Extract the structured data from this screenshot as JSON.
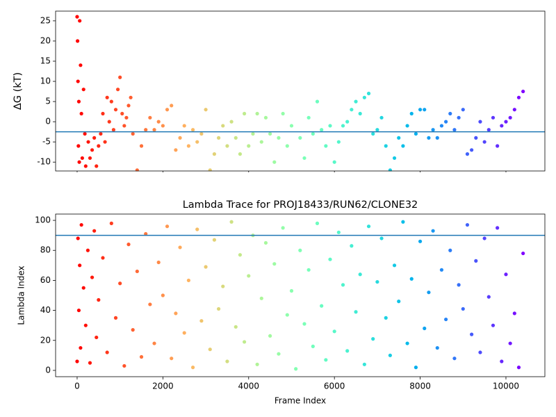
{
  "chart_data": [
    {
      "type": "scatter",
      "ylabel": "ΔG (kT)",
      "colormap": "rainbow_r",
      "hline": -2.5,
      "hline_color": "#1f77b4",
      "xlim": [
        -502,
        10908
      ],
      "ylim": [
        -12.2,
        27.4
      ],
      "xticks": [
        0,
        2000,
        4000,
        6000,
        8000,
        10000
      ],
      "yticks": [
        -10,
        -5,
        0,
        5,
        10,
        15,
        20,
        25
      ],
      "x": [
        0,
        10,
        20,
        30,
        40,
        50,
        60,
        80,
        100,
        120,
        150,
        180,
        200,
        260,
        300,
        350,
        400,
        450,
        500,
        550,
        600,
        650,
        700,
        750,
        800,
        850,
        900,
        950,
        1000,
        1050,
        1100,
        1150,
        1200,
        1250,
        1300,
        1400,
        1500,
        1600,
        1700,
        1800,
        1900,
        2000,
        2100,
        2200,
        2300,
        2400,
        2500,
        2600,
        2700,
        2800,
        2900,
        3000,
        3100,
        3200,
        3300,
        3400,
        3500,
        3600,
        3700,
        3800,
        3900,
        4000,
        4100,
        4200,
        4300,
        4400,
        4500,
        4600,
        4700,
        4800,
        4900,
        5000,
        5200,
        5300,
        5400,
        5500,
        5600,
        5700,
        5800,
        5900,
        6000,
        6100,
        6200,
        6300,
        6400,
        6500,
        6600,
        6700,
        6800,
        6900,
        7000,
        7100,
        7200,
        7300,
        7400,
        7500,
        7600,
        7700,
        7800,
        7900,
        8000,
        8100,
        8200,
        8300,
        8400,
        8500,
        8600,
        8700,
        8800,
        8900,
        9000,
        9100,
        9200,
        9300,
        9400,
        9500,
        9600,
        9700,
        9800,
        9900,
        10000,
        10100,
        10200,
        10300,
        10400
      ],
      "y": [
        26,
        20,
        10,
        -6,
        5,
        -10,
        25,
        14,
        2,
        -9,
        8,
        -3,
        -11,
        -5,
        -9,
        -7,
        -4,
        -11,
        -6,
        -3,
        2,
        -5,
        6,
        0,
        5,
        -2,
        3,
        8,
        11,
        2,
        -1,
        1,
        4,
        6,
        -3,
        -12,
        -6,
        -2,
        1,
        -2,
        0,
        -1,
        3,
        4,
        -7,
        -4,
        -1,
        -6,
        -2,
        -5,
        -3,
        3,
        -12,
        -8,
        -4,
        -1,
        -6,
        0,
        -4,
        -8,
        2,
        -6,
        -3,
        2,
        -5,
        1,
        -3,
        -10,
        -4,
        2,
        -6,
        -1,
        -4,
        -9,
        1,
        -3,
        5,
        -2,
        -6,
        -1,
        -10,
        -5,
        -1,
        0,
        3,
        5,
        2,
        6,
        7,
        -3,
        -2,
        1,
        -6,
        -12,
        -9,
        -4,
        -6,
        -1,
        2,
        -3,
        3,
        3,
        -4,
        -2,
        -4,
        -1,
        0,
        2,
        -2,
        1,
        3,
        -8,
        -7,
        -4,
        0,
        -5,
        -2,
        1,
        -6,
        -1,
        0,
        1,
        3,
        6,
        7.5
      ]
    },
    {
      "type": "scatter",
      "title": "Lambda Trace for PROJ18433/RUN62/CLONE32",
      "xlabel": "Frame Index",
      "ylabel": "Lambda Index",
      "colormap": "rainbow_r",
      "hline": 90,
      "hline_color": "#1f77b4",
      "xlim": [
        -502,
        10908
      ],
      "ylim": [
        -4.2,
        104.2
      ],
      "xticks": [
        0,
        2000,
        4000,
        6000,
        8000,
        10000
      ],
      "yticks": [
        0,
        20,
        40,
        60,
        80,
        100
      ],
      "x": [
        0,
        20,
        40,
        60,
        80,
        100,
        150,
        200,
        250,
        300,
        350,
        400,
        450,
        500,
        600,
        700,
        800,
        900,
        1000,
        1100,
        1200,
        1300,
        1400,
        1500,
        1600,
        1700,
        1800,
        1900,
        2000,
        2100,
        2200,
        2300,
        2400,
        2500,
        2600,
        2700,
        2800,
        2900,
        3000,
        3100,
        3200,
        3300,
        3400,
        3500,
        3600,
        3700,
        3800,
        3900,
        4000,
        4100,
        4200,
        4300,
        4400,
        4500,
        4600,
        4700,
        4800,
        4900,
        5000,
        5100,
        5200,
        5300,
        5400,
        5500,
        5600,
        5700,
        5800,
        5900,
        6000,
        6100,
        6200,
        6300,
        6400,
        6500,
        6600,
        6700,
        6800,
        6900,
        7000,
        7100,
        7200,
        7300,
        7400,
        7500,
        7600,
        7700,
        7800,
        7900,
        8000,
        8100,
        8200,
        8300,
        8400,
        8500,
        8600,
        8700,
        8800,
        8900,
        9000,
        9100,
        9200,
        9300,
        9400,
        9500,
        9600,
        9700,
        9800,
        9900,
        10000,
        10100,
        10200,
        10300,
        10400
      ],
      "y": [
        6,
        88,
        40,
        70,
        15,
        97,
        55,
        30,
        80,
        5,
        62,
        93,
        22,
        47,
        75,
        12,
        98,
        35,
        58,
        3,
        84,
        27,
        66,
        9,
        91,
        44,
        18,
        72,
        50,
        96,
        8,
        38,
        82,
        25,
        60,
        2,
        94,
        33,
        69,
        14,
        87,
        41,
        56,
        6,
        99,
        29,
        77,
        19,
        63,
        90,
        4,
        48,
        85,
        23,
        71,
        11,
        95,
        37,
        53,
        1,
        80,
        31,
        67,
        16,
        98,
        43,
        7,
        74,
        26,
        92,
        57,
        13,
        83,
        39,
        64,
        4,
        96,
        21,
        59,
        88,
        35,
        10,
        70,
        46,
        99,
        18,
        61,
        2,
        86,
        28,
        52,
        93,
        15,
        67,
        34,
        80,
        8,
        57,
        41,
        97,
        24,
        73,
        12,
        88,
        49,
        30,
        95,
        6,
        64,
        18,
        38,
        2,
        78
      ]
    }
  ]
}
